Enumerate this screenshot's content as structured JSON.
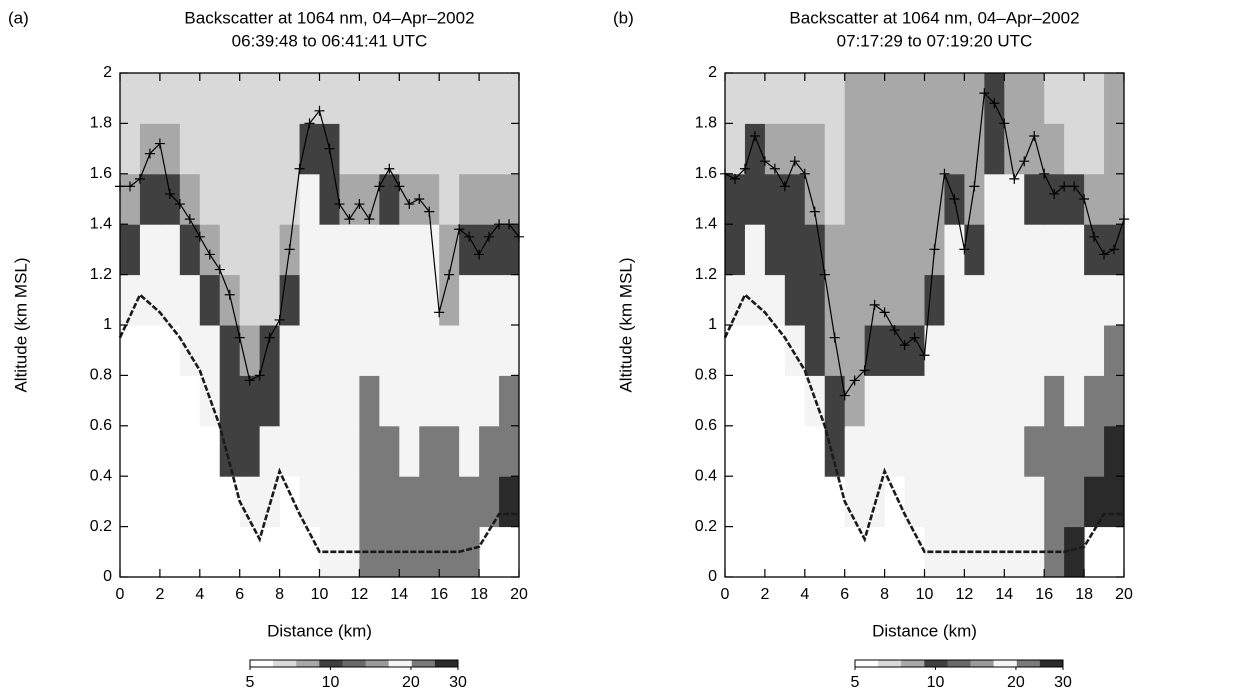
{
  "chart_data": [
    {
      "type": "heatmap",
      "panel_label": "(a)",
      "title": "Backscatter at 1064 nm, 04–Apr–2002",
      "subtitle": "06:39:48 to 06:41:41 UTC",
      "x_label": "Distance (km)",
      "y_label": "Altitude (km MSL)",
      "xlim": [
        0,
        20
      ],
      "ylim": [
        0,
        2
      ],
      "xticks": [
        0,
        2,
        4,
        6,
        8,
        10,
        12,
        14,
        16,
        18,
        20
      ],
      "yticks": [
        0,
        0.2,
        0.4,
        0.6,
        0.8,
        1,
        1.2,
        1.4,
        1.6,
        1.8,
        2
      ],
      "xbins": [
        0,
        1,
        2,
        3,
        4,
        5,
        6,
        7,
        8,
        9,
        10,
        11,
        12,
        13,
        14,
        15,
        16,
        17,
        18,
        19,
        20
      ],
      "ybins": [
        0,
        0.2,
        0.4,
        0.6,
        0.8,
        1,
        1.2,
        1.4,
        1.6,
        1.8,
        2
      ],
      "z": [
        [
          null,
          null,
          null,
          null,
          null,
          null,
          null,
          null,
          null,
          null,
          18,
          18,
          24,
          24,
          22,
          24,
          22,
          22,
          null,
          null
        ],
        [
          null,
          null,
          null,
          null,
          null,
          null,
          18,
          18,
          null,
          18,
          18,
          18,
          22,
          22,
          22,
          24,
          24,
          22,
          24,
          26
        ],
        [
          null,
          null,
          null,
          null,
          null,
          11,
          11,
          18,
          18,
          18,
          18,
          18,
          22,
          22,
          18,
          22,
          22,
          18,
          22,
          24
        ],
        [
          null,
          null,
          null,
          null,
          18,
          11,
          11,
          11,
          18,
          18,
          18,
          18,
          22,
          18,
          18,
          18,
          18,
          18,
          18,
          22
        ],
        [
          null,
          null,
          null,
          18,
          18,
          11,
          9,
          11,
          18,
          18,
          18,
          18,
          18,
          18,
          18,
          18,
          18,
          18,
          18,
          18
        ],
        [
          18,
          18,
          18,
          18,
          11,
          9,
          7,
          7,
          11,
          18,
          18,
          18,
          18,
          18,
          18,
          18,
          9,
          18,
          18,
          18
        ],
        [
          11,
          18,
          18,
          11,
          9,
          7,
          7,
          7,
          9,
          18,
          18,
          18,
          18,
          18,
          18,
          18,
          9,
          11,
          11,
          11
        ],
        [
          9,
          11,
          11,
          9,
          7,
          7,
          7,
          7,
          7,
          18,
          11,
          9,
          9,
          11,
          9,
          9,
          7,
          9,
          9,
          9
        ],
        [
          7,
          9,
          9,
          7,
          7,
          7,
          7,
          7,
          7,
          11,
          11,
          7,
          7,
          7,
          7,
          7,
          7,
          7,
          7,
          7
        ],
        [
          7,
          7,
          7,
          7,
          7,
          7,
          7,
          7,
          7,
          7,
          7,
          7,
          7,
          7,
          7,
          7,
          7,
          7,
          7,
          7
        ]
      ],
      "colormap": [
        "#ffffff",
        "#d9d9d9",
        "#a8a8a8",
        "#404040",
        "#6a6a6a",
        "#9a9a9a",
        "#f4f4f4",
        "#7a7a7a",
        "#2a2a2a"
      ],
      "colorbar": {
        "lim": [
          5,
          30
        ],
        "ticks": [
          5,
          10,
          20,
          30
        ],
        "log": true
      },
      "series": [
        {
          "color": "#000000",
          "marker": "+",
          "dash": false,
          "x": [
            0,
            0.5,
            1,
            1.5,
            2,
            2.5,
            3,
            3.5,
            4,
            4.5,
            5,
            5.5,
            6,
            6.5,
            7,
            7.5,
            8,
            8.5,
            9,
            9.5,
            10,
            10.5,
            11,
            11.5,
            12,
            12.5,
            13,
            13.5,
            14,
            14.5,
            15,
            15.5,
            16,
            16.5,
            17,
            17.5,
            18,
            18.5,
            19,
            19.5,
            20
          ],
          "values": [
            1.55,
            1.55,
            1.58,
            1.68,
            1.72,
            1.52,
            1.48,
            1.42,
            1.35,
            1.28,
            1.22,
            1.12,
            0.95,
            0.78,
            0.8,
            0.95,
            1.02,
            1.3,
            1.62,
            1.8,
            1.85,
            1.7,
            1.48,
            1.42,
            1.48,
            1.42,
            1.55,
            1.62,
            1.55,
            1.48,
            1.5,
            1.45,
            1.05,
            1.2,
            1.38,
            1.35,
            1.28,
            1.35,
            1.4,
            1.4,
            1.35
          ]
        },
        {
          "color": "#1a1a1a",
          "marker": null,
          "dash": true,
          "x": [
            0,
            1,
            2,
            3,
            4,
            5,
            6,
            7,
            8,
            9,
            10,
            11,
            12,
            13,
            14,
            15,
            16,
            17,
            18,
            19,
            20
          ],
          "values": [
            0.95,
            1.12,
            1.05,
            0.95,
            0.82,
            0.6,
            0.3,
            0.15,
            0.42,
            0.25,
            0.1,
            0.1,
            0.1,
            0.1,
            0.1,
            0.1,
            0.1,
            0.1,
            0.12,
            0.25,
            0.25
          ]
        }
      ]
    },
    {
      "type": "heatmap",
      "panel_label": "(b)",
      "title": "Backscatter at 1064 nm, 04–Apr–2002",
      "subtitle": "07:17:29 to 07:19:20 UTC",
      "x_label": "Distance (km)",
      "y_label": "Altitude (km MSL)",
      "xlim": [
        0,
        20
      ],
      "ylim": [
        0,
        2
      ],
      "xticks": [
        0,
        2,
        4,
        6,
        8,
        10,
        12,
        14,
        16,
        18,
        20
      ],
      "yticks": [
        0,
        0.2,
        0.4,
        0.6,
        0.8,
        1,
        1.2,
        1.4,
        1.6,
        1.8,
        2
      ],
      "xbins": [
        0,
        1,
        2,
        3,
        4,
        5,
        6,
        7,
        8,
        9,
        10,
        11,
        12,
        13,
        14,
        15,
        16,
        17,
        18,
        19,
        20
      ],
      "ybins": [
        0,
        0.2,
        0.4,
        0.6,
        0.8,
        1,
        1.2,
        1.4,
        1.6,
        1.8,
        2
      ],
      "z": [
        [
          null,
          null,
          null,
          null,
          null,
          null,
          null,
          null,
          null,
          null,
          18,
          18,
          18,
          18,
          18,
          18,
          24,
          26,
          null,
          null
        ],
        [
          null,
          null,
          null,
          null,
          null,
          null,
          18,
          18,
          null,
          18,
          18,
          18,
          18,
          18,
          18,
          18,
          24,
          24,
          26,
          26
        ],
        [
          null,
          null,
          null,
          null,
          null,
          11,
          18,
          18,
          18,
          18,
          18,
          18,
          18,
          18,
          18,
          22,
          24,
          22,
          24,
          26
        ],
        [
          null,
          null,
          null,
          null,
          18,
          11,
          9,
          18,
          18,
          18,
          18,
          18,
          18,
          18,
          18,
          18,
          22,
          18,
          22,
          24
        ],
        [
          null,
          null,
          null,
          18,
          11,
          9,
          9,
          11,
          11,
          11,
          18,
          18,
          18,
          18,
          18,
          18,
          18,
          18,
          18,
          22
        ],
        [
          18,
          18,
          18,
          11,
          11,
          9,
          9,
          9,
          9,
          9,
          11,
          18,
          18,
          18,
          18,
          18,
          18,
          18,
          18,
          18
        ],
        [
          11,
          18,
          11,
          11,
          11,
          9,
          9,
          9,
          9,
          9,
          9,
          18,
          11,
          18,
          18,
          18,
          18,
          18,
          11,
          11
        ],
        [
          11,
          11,
          11,
          11,
          9,
          7,
          9,
          9,
          9,
          9,
          9,
          11,
          9,
          18,
          18,
          11,
          11,
          11,
          9,
          9
        ],
        [
          7,
          11,
          9,
          9,
          9,
          7,
          9,
          9,
          9,
          9,
          9,
          9,
          9,
          11,
          9,
          9,
          9,
          7,
          7,
          9
        ],
        [
          7,
          7,
          7,
          7,
          7,
          7,
          9,
          9,
          9,
          9,
          9,
          9,
          9,
          11,
          9,
          9,
          7,
          7,
          7,
          9
        ]
      ],
      "colormap": [
        "#ffffff",
        "#d9d9d9",
        "#a8a8a8",
        "#404040",
        "#6a6a6a",
        "#9a9a9a",
        "#f4f4f4",
        "#7a7a7a",
        "#2a2a2a"
      ],
      "colorbar": {
        "lim": [
          5,
          30
        ],
        "ticks": [
          5,
          10,
          20,
          30
        ],
        "log": true
      },
      "series": [
        {
          "color": "#000000",
          "marker": "+",
          "dash": false,
          "x": [
            0,
            0.5,
            1,
            1.5,
            2,
            2.5,
            3,
            3.5,
            4,
            4.5,
            5,
            5.5,
            6,
            6.5,
            7,
            7.5,
            8,
            8.5,
            9,
            9.5,
            10,
            10.5,
            11,
            11.5,
            12,
            12.5,
            13,
            13.5,
            14,
            14.5,
            15,
            15.5,
            16,
            16.5,
            17,
            17.5,
            18,
            18.5,
            19,
            19.5,
            20
          ],
          "values": [
            1.6,
            1.58,
            1.62,
            1.75,
            1.65,
            1.62,
            1.55,
            1.65,
            1.6,
            1.45,
            1.2,
            0.95,
            0.72,
            0.78,
            0.82,
            1.08,
            1.05,
            0.98,
            0.92,
            0.95,
            0.88,
            1.3,
            1.6,
            1.5,
            1.3,
            1.55,
            1.92,
            1.88,
            1.8,
            1.58,
            1.65,
            1.75,
            1.6,
            1.52,
            1.55,
            1.55,
            1.5,
            1.35,
            1.28,
            1.3,
            1.42
          ]
        },
        {
          "color": "#1a1a1a",
          "marker": null,
          "dash": true,
          "x": [
            0,
            1,
            2,
            3,
            4,
            5,
            6,
            7,
            8,
            9,
            10,
            11,
            12,
            13,
            14,
            15,
            16,
            17,
            18,
            19,
            20
          ],
          "values": [
            0.95,
            1.12,
            1.05,
            0.95,
            0.82,
            0.6,
            0.3,
            0.15,
            0.42,
            0.25,
            0.1,
            0.1,
            0.1,
            0.1,
            0.1,
            0.1,
            0.1,
            0.1,
            0.12,
            0.25,
            0.25
          ]
        }
      ]
    }
  ]
}
